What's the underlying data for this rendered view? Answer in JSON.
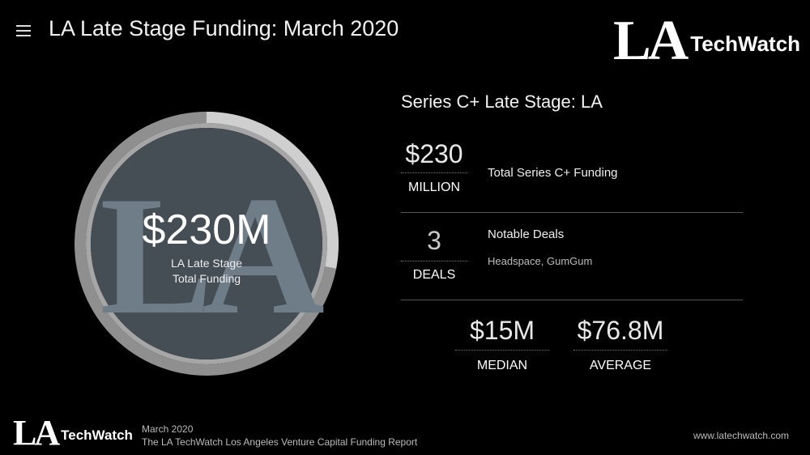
{
  "header": {
    "title": "LA Late Stage Funding: March 2020",
    "logo_la": "LA",
    "logo_techwatch": "TechWatch"
  },
  "donut": {
    "value_text": "$230M",
    "caption_line1": "LA Late Stage",
    "caption_line2": "Total Funding",
    "watermark_text": "LA",
    "progress_fraction": 0.28,
    "colors": {
      "fill": "#454d55",
      "ring_fill": "#cfcfcf",
      "ring_track": "#8f8f8f",
      "inner_border": "#a6a6a6",
      "watermark": "#6e7d88"
    }
  },
  "stats": {
    "section_title": "Series C+ Late Stage: LA",
    "total": {
      "value": "$230",
      "unit": "MILLION",
      "label": "Total Series C+ Funding"
    },
    "deals": {
      "value": "3",
      "unit": "DEALS",
      "label": "Notable Deals",
      "detail": "Headspace, GumGum"
    },
    "median": {
      "value": "$15M",
      "unit": "MEDIAN"
    },
    "average": {
      "value": "$76.8M",
      "unit": "AVERAGE"
    }
  },
  "footer": {
    "logo_la": "LA",
    "logo_techwatch": "TechWatch",
    "date": "March 2020",
    "report": "The LA TechWatch Los Angeles Venture Capital Funding Report",
    "url": "www.latechwatch.com"
  },
  "icons": {
    "menu": "hamburger-menu-icon"
  }
}
